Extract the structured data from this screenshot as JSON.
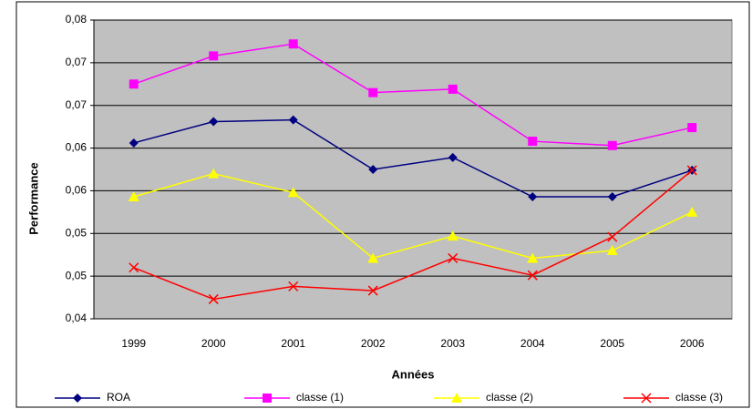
{
  "chart_data": {
    "type": "line",
    "y_label": "Performance",
    "x_label": "Années",
    "categories": [
      "1999",
      "2000",
      "2001",
      "2002",
      "2003",
      "2004",
      "2005",
      "2006"
    ],
    "series": [
      {
        "name": "ROA",
        "color": "#000080",
        "marker": "diamond",
        "values": [
          0.0606,
          0.0631,
          0.0633,
          0.0575,
          0.0589,
          0.0543,
          0.0543,
          0.0574
        ]
      },
      {
        "name": "classe (1)",
        "color": "#ff00ff",
        "marker": "square",
        "values": [
          0.0675,
          0.0708,
          0.0722,
          0.0665,
          0.0669,
          0.0608,
          0.0603,
          0.0624
        ]
      },
      {
        "name": "classe (2)",
        "color": "#ffff00",
        "marker": "triangle",
        "values": [
          0.0543,
          0.057,
          0.0548,
          0.0471,
          0.0497,
          0.0471,
          0.048,
          0.0525
        ]
      },
      {
        "name": "classe (3)",
        "color": "#ff0000",
        "marker": "x",
        "values": [
          0.046,
          0.0423,
          0.0438,
          0.0433,
          0.0471,
          0.0451,
          0.0496,
          0.0574
        ]
      }
    ],
    "ylim": [
      0.04,
      0.075
    ],
    "yticks": [
      {
        "value": 0.04,
        "label": "0,04"
      },
      {
        "value": 0.045,
        "label": "0,05"
      },
      {
        "value": 0.05,
        "label": "0,05"
      },
      {
        "value": 0.055,
        "label": "0,06"
      },
      {
        "value": 0.06,
        "label": "0,06"
      },
      {
        "value": 0.065,
        "label": "0,07"
      },
      {
        "value": 0.07,
        "label": "0,07"
      },
      {
        "value": 0.075,
        "label": "0,08"
      }
    ],
    "grid": true,
    "plot_background": "#c0c0c0",
    "legend": "bottom"
  }
}
